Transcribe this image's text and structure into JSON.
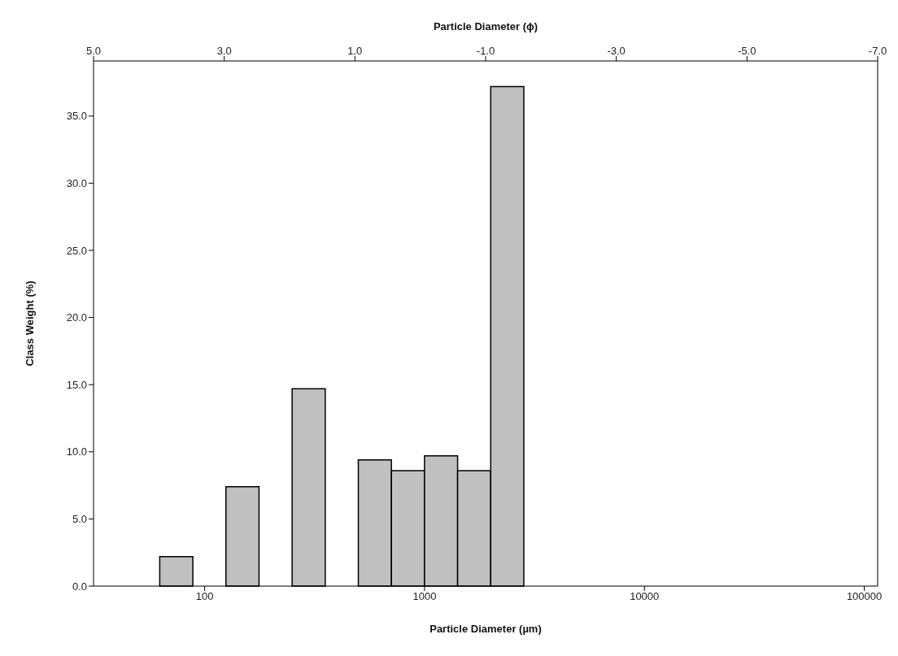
{
  "chart_data": {
    "type": "histogram",
    "xlabel": "Particle Diameter (µm)",
    "x2label": "Particle Diameter (ϕ)",
    "ylabel": "Class Weight (%)",
    "bins": [
      62.5,
      88.4,
      125,
      176.8,
      250,
      353.6,
      500,
      707.1,
      1000,
      1414,
      2000,
      2828
    ],
    "values": [
      2.2,
      0,
      7.4,
      0,
      14.7,
      0,
      9.4,
      8.6,
      9.7,
      8.6,
      37.2
    ],
    "color": "#c0c0c0",
    "log": "x",
    "xlim": [
      31.25,
      115000
    ],
    "xticks": [
      100,
      1000,
      10000,
      100000
    ],
    "x2lim": [
      5,
      -7
    ],
    "x2ticks": [
      {
        "value": 5,
        "label": "5.0"
      },
      {
        "value": 3,
        "label": "3.0"
      },
      {
        "value": 1,
        "label": "1.0"
      },
      {
        "value": -1,
        "label": "-1.0"
      },
      {
        "value": -3,
        "label": "-3.0"
      },
      {
        "value": -5,
        "label": "-5.0"
      },
      {
        "value": -7,
        "label": "-7.0"
      }
    ],
    "ylim": [
      0,
      39.1
    ],
    "yticks": [
      {
        "value": 0,
        "label": "0.0"
      },
      {
        "value": 5,
        "label": "5.0"
      },
      {
        "value": 10,
        "label": "10.0"
      },
      {
        "value": 15,
        "label": "15.0"
      },
      {
        "value": 20,
        "label": "20.0"
      },
      {
        "value": 25,
        "label": "25.0"
      },
      {
        "value": 30,
        "label": "30.0"
      },
      {
        "value": 35,
        "label": "35.0"
      }
    ]
  }
}
